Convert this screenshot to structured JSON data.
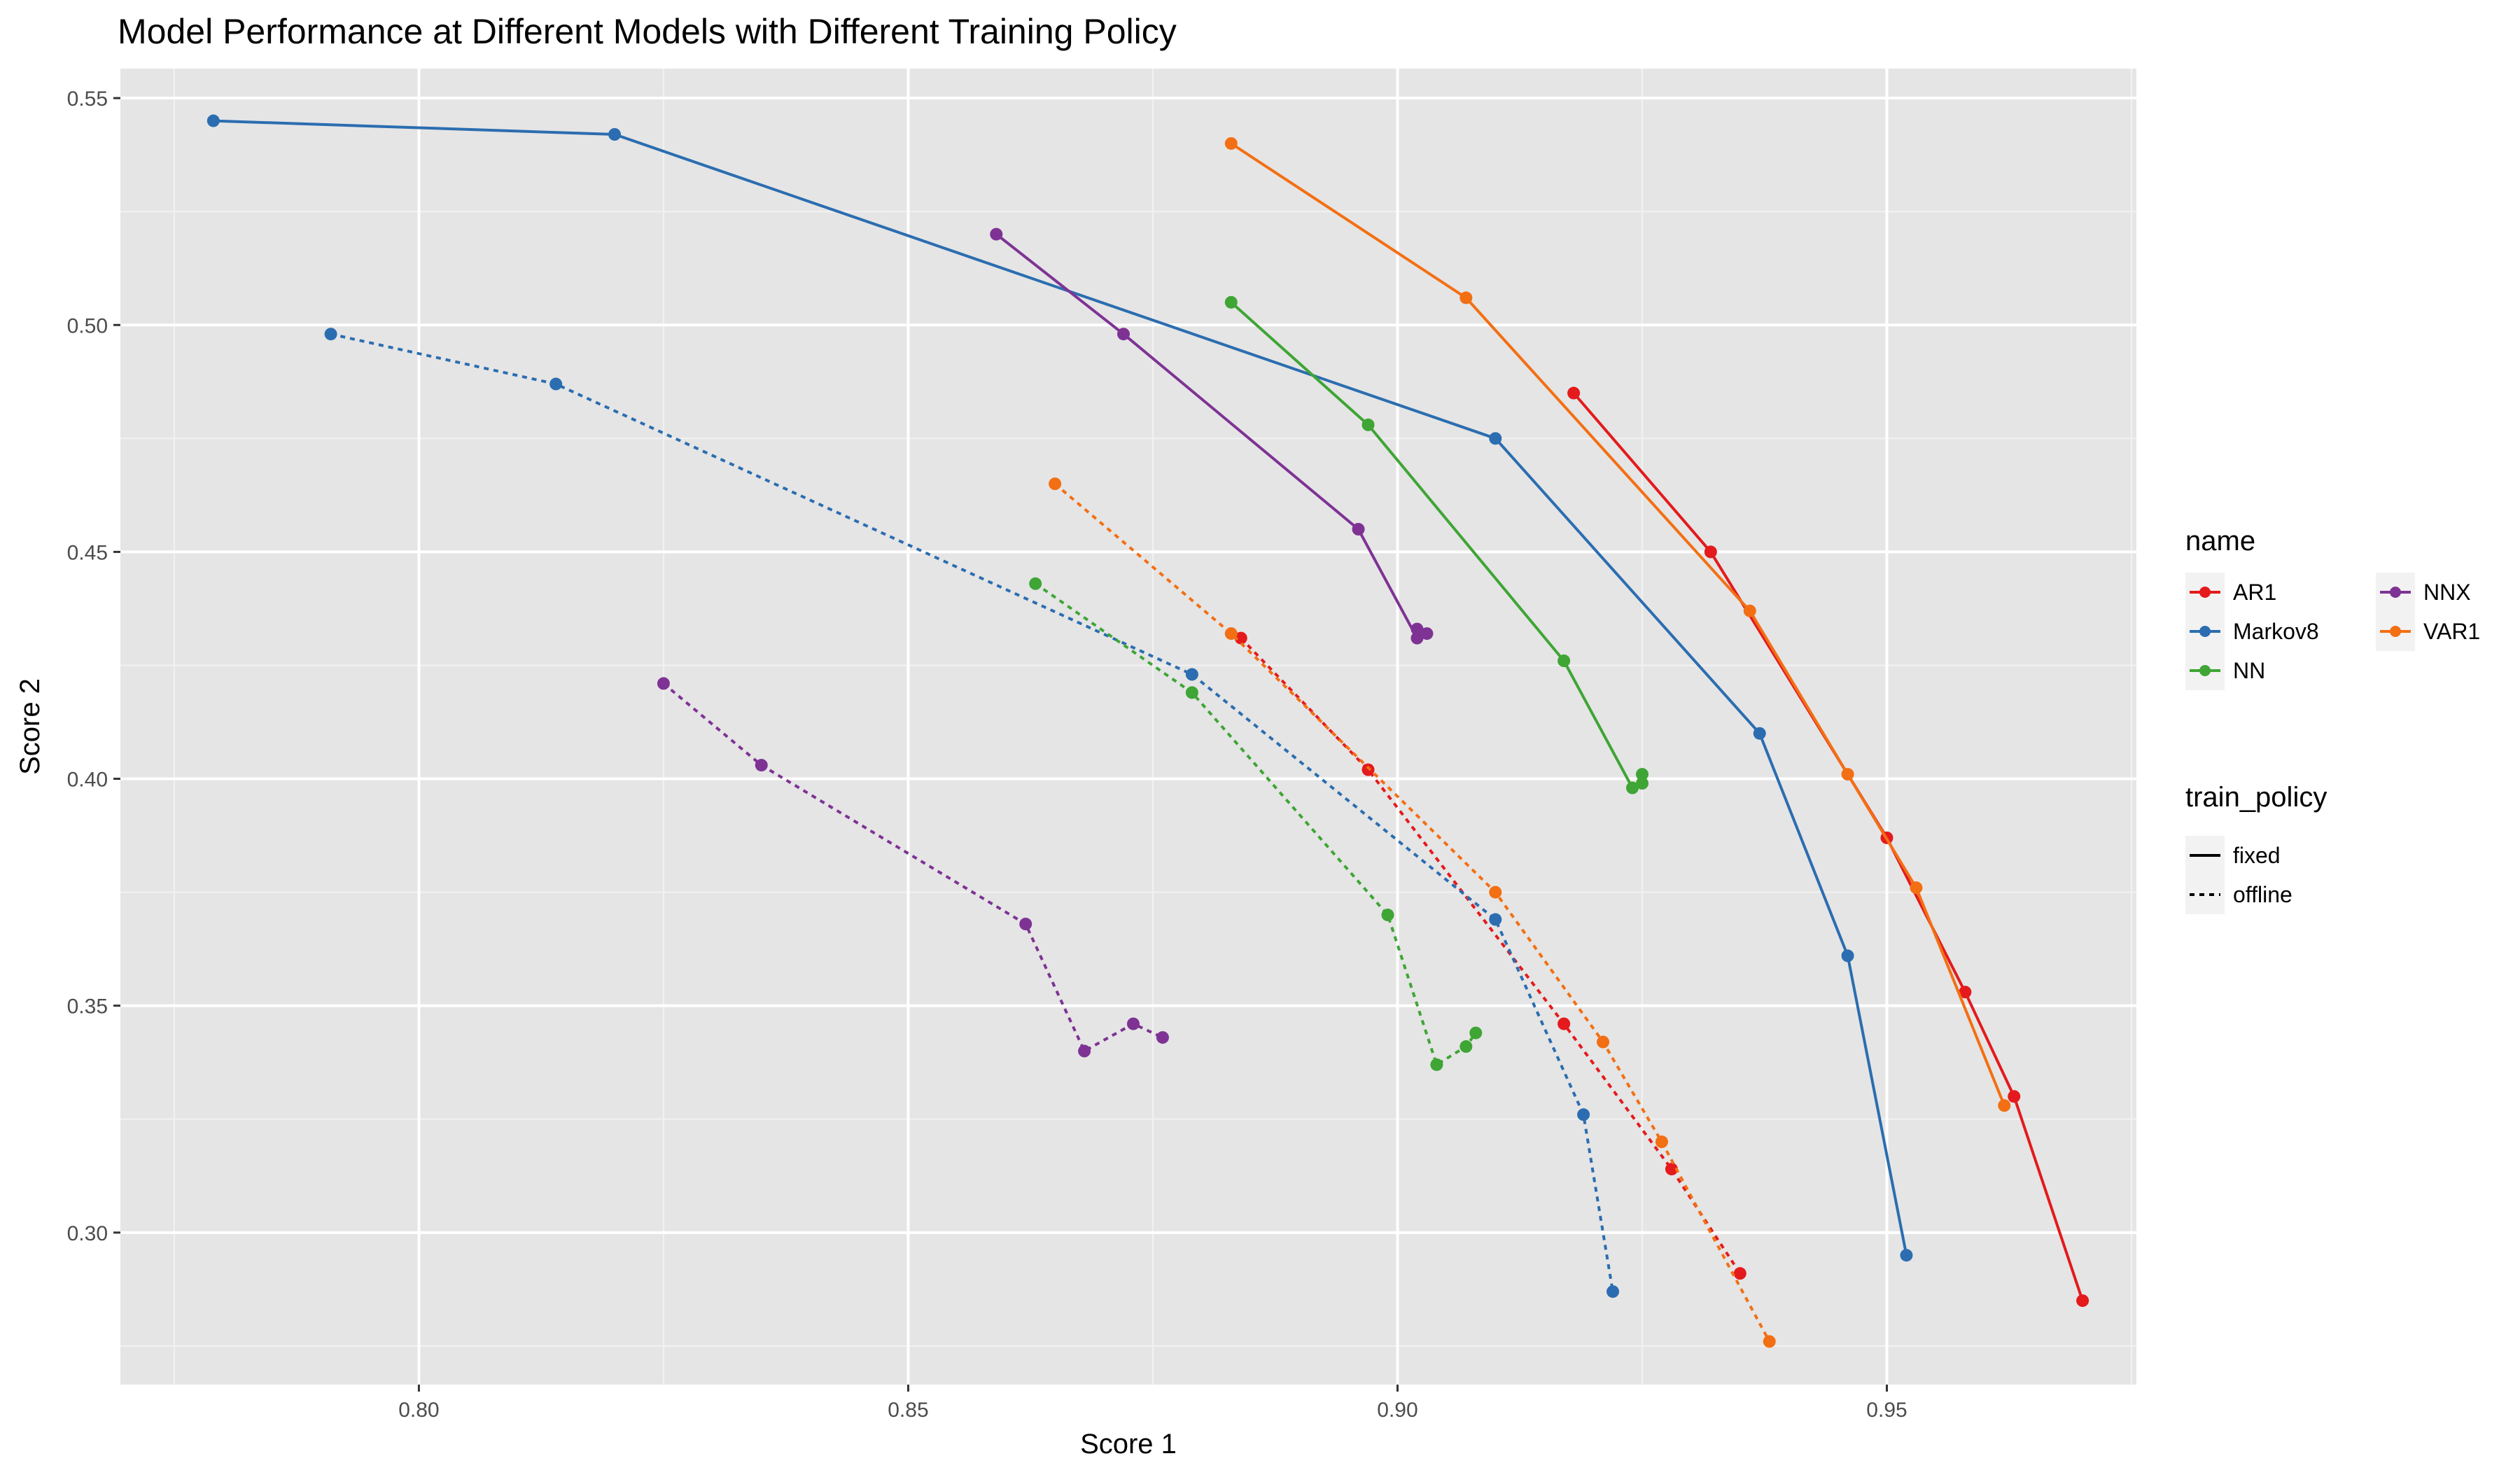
{
  "chart_data": {
    "type": "line",
    "title": "Model Performance at Different Models with Different Training Policy",
    "xlabel": "Score 1",
    "ylabel": "Score 2",
    "xlim": [
      0.7695,
      0.9755
    ],
    "ylim": [
      0.2665,
      0.5565
    ],
    "x_ticks": [
      0.8,
      0.85,
      0.9,
      0.95
    ],
    "x_tick_labels": [
      "0.80",
      "0.85",
      "0.90",
      "0.95"
    ],
    "y_ticks": [
      0.3,
      0.35,
      0.4,
      0.45,
      0.5,
      0.55
    ],
    "y_tick_labels": [
      "0.30",
      "0.35",
      "0.40",
      "0.45",
      "0.50",
      "0.55"
    ],
    "grid": true,
    "legend_position": "right",
    "legend_name": {
      "title": "name",
      "entries": [
        {
          "label": "AR1",
          "color": "#E41A1C"
        },
        {
          "label": "Markov8",
          "color": "#2B6DB0"
        },
        {
          "label": "NN",
          "color": "#3FA535"
        },
        {
          "label": "NNX",
          "color": "#7E3394"
        },
        {
          "label": "VAR1",
          "color": "#F36F13"
        }
      ]
    },
    "legend_policy": {
      "title": "train_policy",
      "entries": [
        {
          "label": "fixed",
          "dash": "solid"
        },
        {
          "label": "offline",
          "dash": "dotted"
        }
      ]
    },
    "series": [
      {
        "name": "AR1",
        "train_policy": "fixed",
        "color": "#E41A1C",
        "x": [
          0.918,
          0.932,
          0.95,
          0.958,
          0.963,
          0.97
        ],
        "y": [
          0.485,
          0.45,
          0.387,
          0.353,
          0.33,
          0.285
        ]
      },
      {
        "name": "AR1",
        "train_policy": "offline",
        "color": "#E41A1C",
        "x": [
          0.884,
          0.897,
          0.917,
          0.928,
          0.935
        ],
        "y": [
          0.431,
          0.402,
          0.346,
          0.314,
          0.291
        ]
      },
      {
        "name": "Markov8",
        "train_policy": "fixed",
        "color": "#2B6DB0",
        "x": [
          0.779,
          0.82,
          0.91,
          0.937,
          0.946,
          0.952
        ],
        "y": [
          0.545,
          0.542,
          0.475,
          0.41,
          0.361,
          0.295
        ]
      },
      {
        "name": "Markov8",
        "train_policy": "offline",
        "color": "#2B6DB0",
        "x": [
          0.791,
          0.814,
          0.879,
          0.91,
          0.919,
          0.922
        ],
        "y": [
          0.498,
          0.487,
          0.423,
          0.369,
          0.326,
          0.287
        ]
      },
      {
        "name": "NN",
        "train_policy": "fixed",
        "color": "#3FA535",
        "x": [
          0.883,
          0.897,
          0.917,
          0.924,
          0.925,
          0.925
        ],
        "y": [
          0.505,
          0.478,
          0.426,
          0.398,
          0.399,
          0.401
        ]
      },
      {
        "name": "NN",
        "train_policy": "offline",
        "color": "#3FA535",
        "x": [
          0.863,
          0.879,
          0.899,
          0.904,
          0.907,
          0.908
        ],
        "y": [
          0.443,
          0.419,
          0.37,
          0.337,
          0.341,
          0.344
        ]
      },
      {
        "name": "NNX",
        "train_policy": "fixed",
        "color": "#7E3394",
        "x": [
          0.859,
          0.872,
          0.896,
          0.902,
          0.903,
          0.902
        ],
        "y": [
          0.52,
          0.498,
          0.455,
          0.431,
          0.432,
          0.433
        ]
      },
      {
        "name": "NNX",
        "train_policy": "offline",
        "color": "#7E3394",
        "x": [
          0.825,
          0.835,
          0.862,
          0.868,
          0.873,
          0.876
        ],
        "y": [
          0.421,
          0.403,
          0.368,
          0.34,
          0.346,
          0.343
        ]
      },
      {
        "name": "VAR1",
        "train_policy": "fixed",
        "color": "#F36F13",
        "x": [
          0.883,
          0.907,
          0.936,
          0.946,
          0.953,
          0.962
        ],
        "y": [
          0.54,
          0.506,
          0.437,
          0.401,
          0.376,
          0.328
        ]
      },
      {
        "name": "VAR1",
        "train_policy": "offline",
        "color": "#F36F13",
        "x": [
          0.865,
          0.883,
          0.91,
          0.921,
          0.927,
          0.938
        ],
        "y": [
          0.465,
          0.432,
          0.375,
          0.342,
          0.32,
          0.276
        ]
      }
    ]
  }
}
